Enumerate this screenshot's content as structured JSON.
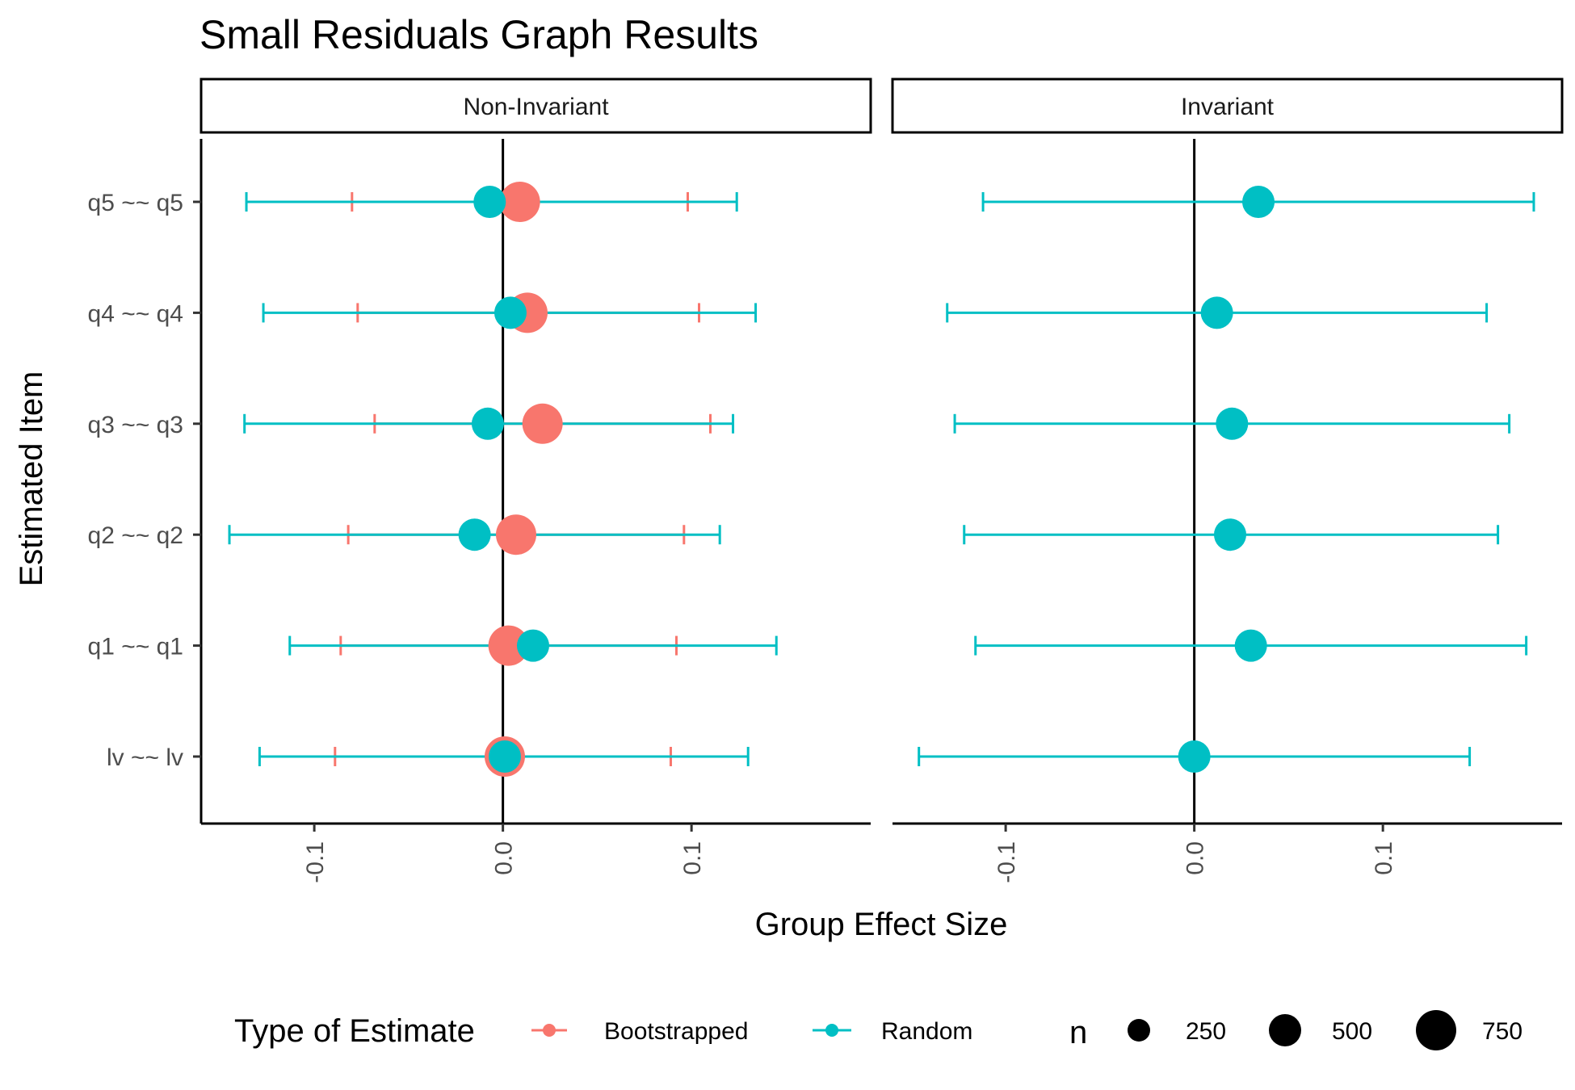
{
  "chart_data": {
    "type": "scatter",
    "title": "Small Residuals Graph Results",
    "xlabel": "Group Effect Size",
    "ylabel": "Estimated Item",
    "xlim": [
      -0.16,
      0.195
    ],
    "x_ticks": [
      -0.1,
      0.0,
      0.1
    ],
    "x_tick_labels": [
      "-0.1",
      "0.0",
      "0.1"
    ],
    "categories": [
      "lv ~~ lv",
      "q1 ~~ q1",
      "q2 ~~ q2",
      "q3 ~~ q3",
      "q4 ~~ q4",
      "q5 ~~ q5"
    ],
    "reference_line_x": 0,
    "panels": [
      {
        "strip": "Non-Invariant",
        "series": [
          {
            "name": "Bootstrapped",
            "color": "#F8766D",
            "points": [
              {
                "item": "lv ~~ lv",
                "estimate": 0.001,
                "lower": -0.089,
                "upper": 0.089,
                "n": 750
              },
              {
                "item": "q1 ~~ q1",
                "estimate": 0.003,
                "lower": -0.086,
                "upper": 0.092,
                "n": 750
              },
              {
                "item": "q2 ~~ q2",
                "estimate": 0.007,
                "lower": -0.082,
                "upper": 0.096,
                "n": 750
              },
              {
                "item": "q3 ~~ q3",
                "estimate": 0.021,
                "lower": -0.068,
                "upper": 0.11,
                "n": 750
              },
              {
                "item": "q4 ~~ q4",
                "estimate": 0.013,
                "lower": -0.077,
                "upper": 0.104,
                "n": 750
              },
              {
                "item": "q5 ~~ q5",
                "estimate": 0.009,
                "lower": -0.08,
                "upper": 0.098,
                "n": 750
              }
            ]
          },
          {
            "name": "Random",
            "color": "#00BFC4",
            "points": [
              {
                "item": "lv ~~ lv",
                "estimate": 0.001,
                "lower": -0.129,
                "upper": 0.13,
                "n": 500
              },
              {
                "item": "q1 ~~ q1",
                "estimate": 0.016,
                "lower": -0.113,
                "upper": 0.145,
                "n": 500
              },
              {
                "item": "q2 ~~ q2",
                "estimate": -0.015,
                "lower": -0.145,
                "upper": 0.115,
                "n": 500
              },
              {
                "item": "q3 ~~ q3",
                "estimate": -0.008,
                "lower": -0.137,
                "upper": 0.122,
                "n": 500
              },
              {
                "item": "q4 ~~ q4",
                "estimate": 0.004,
                "lower": -0.127,
                "upper": 0.134,
                "n": 500
              },
              {
                "item": "q5 ~~ q5",
                "estimate": -0.007,
                "lower": -0.136,
                "upper": 0.124,
                "n": 500
              }
            ]
          }
        ]
      },
      {
        "strip": "Invariant",
        "series": [
          {
            "name": "Random",
            "color": "#00BFC4",
            "points": [
              {
                "item": "lv ~~ lv",
                "estimate": 0.0,
                "lower": -0.146,
                "upper": 0.146,
                "n": 500
              },
              {
                "item": "q1 ~~ q1",
                "estimate": 0.03,
                "lower": -0.116,
                "upper": 0.176,
                "n": 500
              },
              {
                "item": "q2 ~~ q2",
                "estimate": 0.019,
                "lower": -0.122,
                "upper": 0.161,
                "n": 500
              },
              {
                "item": "q3 ~~ q3",
                "estimate": 0.02,
                "lower": -0.127,
                "upper": 0.167,
                "n": 500
              },
              {
                "item": "q4 ~~ q4",
                "estimate": 0.012,
                "lower": -0.131,
                "upper": 0.155,
                "n": 500
              },
              {
                "item": "q5 ~~ q5",
                "estimate": 0.034,
                "lower": -0.112,
                "upper": 0.18,
                "n": 500
              }
            ]
          }
        ]
      }
    ],
    "legend": {
      "placement": "bottom",
      "color_title": "Type of Estimate",
      "color_entries": [
        {
          "label": "Bootstrapped",
          "color": "#F8766D"
        },
        {
          "label": "Random",
          "color": "#00BFC4"
        }
      ],
      "size_title": "n",
      "size_entries": [
        {
          "label": "250",
          "value": 250
        },
        {
          "label": "500",
          "value": 500
        },
        {
          "label": "750",
          "value": 750
        }
      ]
    }
  }
}
